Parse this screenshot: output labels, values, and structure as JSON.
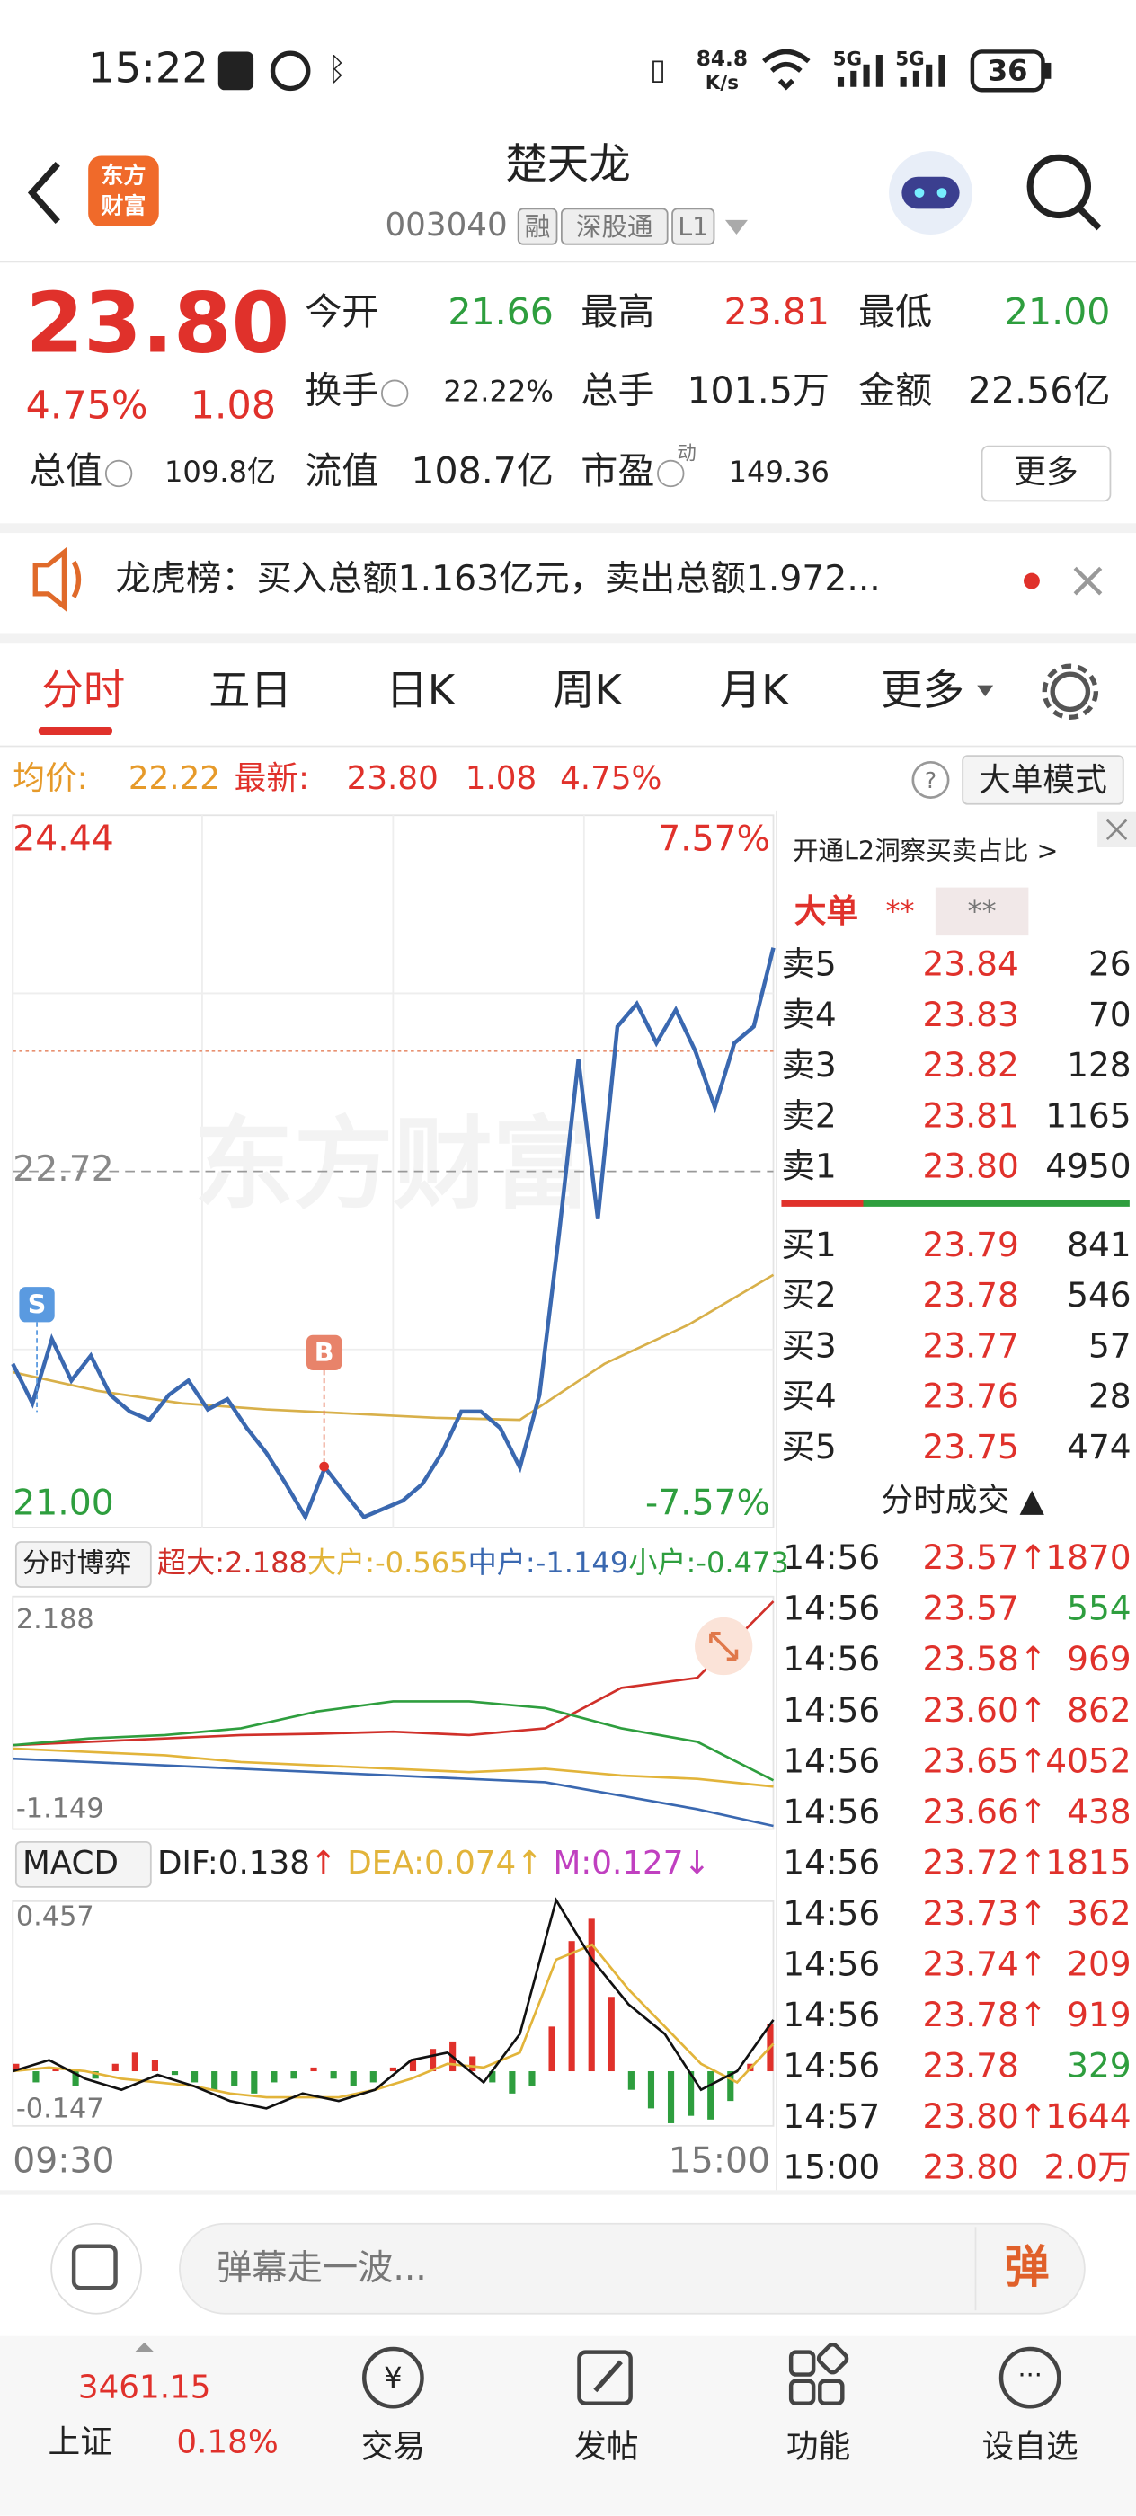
{
  "status_bar": {
    "time": "15:22",
    "speed": "84.8",
    "speed_unit": "K/s",
    "network": [
      "5G",
      "5G"
    ],
    "battery": "36"
  },
  "header": {
    "logo": [
      "东方",
      "财富"
    ],
    "title": "楚天龙",
    "code": "003040",
    "tags": [
      "融",
      "深股通",
      "L1"
    ]
  },
  "quote": {
    "price": "23.80",
    "change_pct": "4.75%",
    "change": "1.08",
    "fields": [
      {
        "label": "今开",
        "value": "21.66",
        "color": "green"
      },
      {
        "label": "最高",
        "value": "23.81",
        "color": "red"
      },
      {
        "label": "最低",
        "value": "21.00",
        "color": "green"
      },
      {
        "label": "换手",
        "value": "22.22%",
        "color": "dark"
      },
      {
        "label": "总手",
        "value": "101.5万",
        "color": "dark"
      },
      {
        "label": "金额",
        "value": "22.56亿",
        "color": "dark"
      },
      {
        "label": "总值",
        "value": "109.8亿",
        "color": "dark"
      },
      {
        "label": "流值",
        "value": "108.7亿",
        "color": "dark"
      },
      {
        "label": "市盈",
        "value": "149.36",
        "color": "dark"
      }
    ],
    "pe_sup": "动",
    "more": "更多"
  },
  "notice": "龙虎榜：买入总额1.163亿元，卖出总额1.972...",
  "tabs": [
    "分时",
    "五日",
    "日K",
    "周K",
    "月K",
    "更多"
  ],
  "info_bar": {
    "avg_label": "均价:",
    "avg": "22.22",
    "last_label": "最新:",
    "last": "23.80",
    "change": "1.08",
    "change_pct": "4.75%",
    "help": "?",
    "mode": "大单模式"
  },
  "price_chart": {
    "ylim": [
      {
        "value": 21,
        "label": "21.00"
      },
      24.44
    ],
    "pct_labels": [
      "7.57%",
      "-7.57%"
    ],
    "prev_close": 22.72,
    "watermark": "东方财富",
    "markers": [
      "S",
      "B"
    ],
    "price": {
      "color": "#3a68b0",
      "values": [
        21.79,
        21.6,
        21.91,
        21.71,
        21.83,
        21.64,
        21.56,
        21.52,
        21.64,
        21.71,
        21.57,
        21.62,
        21.48,
        21.36,
        21.21,
        21.05,
        21.29,
        21.17,
        21.05,
        21.09,
        21.13,
        21.21,
        21.36,
        21.56,
        21.56,
        21.48,
        21.29,
        21.64,
        22.41,
        23.26,
        22.49,
        23.42,
        23.53,
        23.34,
        23.5,
        23.3,
        23.03,
        23.34,
        23.42,
        23.8
      ]
    },
    "average": {
      "color": "#d8b04a",
      "values": [
        21.75,
        21.66,
        21.6,
        21.57,
        21.55,
        21.53,
        21.52,
        21.79,
        21.98,
        22.22
      ]
    },
    "x_labels": [
      "09:30",
      "15:00"
    ]
  },
  "fund_chart": {
    "title": "分时博弈",
    "ylim": [
      -1.149,
      2.188
    ],
    "series": [
      {
        "name": "超大:",
        "color": "#d0302a",
        "values": [
          0.05,
          0.1,
          0.15,
          0.2,
          0.22,
          0.25,
          0.2,
          0.3,
          0.9,
          1.05,
          2.188
        ]
      },
      {
        "name": "大户:",
        "color": "#e2b43a",
        "values": [
          0.0,
          -0.05,
          -0.1,
          -0.2,
          -0.25,
          -0.3,
          -0.35,
          -0.3,
          -0.4,
          -0.45,
          -0.565
        ]
      },
      {
        "name": "中户:",
        "color": "#3a68b0",
        "values": [
          -0.15,
          -0.2,
          -0.25,
          -0.3,
          -0.35,
          -0.4,
          -0.45,
          -0.5,
          -0.7,
          -0.9,
          -1.149
        ]
      },
      {
        "name": "小户:",
        "color": "#2e9e3e",
        "values": [
          0.05,
          0.15,
          0.2,
          0.3,
          0.55,
          0.7,
          0.7,
          0.6,
          0.3,
          0.1,
          -0.473
        ]
      }
    ]
  },
  "macd_chart": {
    "title": "MACD",
    "ylim": [
      -0.147,
      0.457
    ],
    "dif": {
      "name": "DIF:",
      "trend": "↑",
      "color": "#111111",
      "values": [
        0.0,
        0.03,
        -0.02,
        -0.05,
        -0.01,
        -0.04,
        -0.08,
        -0.1,
        -0.06,
        -0.08,
        -0.05,
        0.03,
        0.05,
        -0.03,
        0.1,
        0.46,
        0.3,
        0.18,
        0.1,
        -0.05,
        0.0,
        0.138
      ]
    },
    "dea": {
      "name": "DEA:",
      "trend": "↑",
      "color": "#e2b43a",
      "values": [
        0.0,
        0.01,
        0.0,
        -0.02,
        -0.03,
        -0.04,
        -0.06,
        -0.07,
        -0.07,
        -0.07,
        -0.05,
        -0.02,
        0.02,
        0.01,
        0.05,
        0.3,
        0.34,
        0.22,
        0.12,
        0.02,
        -0.03,
        0.074
      ]
    },
    "m": {
      "name": "M:",
      "trend": "↓",
      "up_color": "#e0312b",
      "down_color": "#2e9e3e",
      "values": [
        0.02,
        -0.03,
        0.01,
        -0.04,
        -0.02,
        0.02,
        0.05,
        0.03,
        -0.01,
        -0.03,
        -0.05,
        -0.04,
        -0.06,
        -0.03,
        -0.02,
        0.01,
        -0.02,
        -0.04,
        -0.03,
        0.01,
        0.03,
        0.06,
        0.08,
        0.04,
        -0.03,
        -0.06,
        -0.04,
        0.12,
        0.35,
        0.41,
        0.2,
        -0.05,
        -0.1,
        -0.14,
        -0.12,
        -0.13,
        -0.08,
        0.02,
        0.127
      ]
    }
  },
  "order_book": {
    "l2": "开通L2洞察买卖占比 >",
    "big": "大单",
    "big_values": [
      "**",
      "**"
    ],
    "asks": [
      {
        "label": "卖5",
        "price": "23.84",
        "volume": "26"
      },
      {
        "label": "卖4",
        "price": "23.83",
        "volume": "70"
      },
      {
        "label": "卖3",
        "price": "23.82",
        "volume": "128"
      },
      {
        "label": "卖2",
        "price": "23.81",
        "volume": "1165"
      },
      {
        "label": "卖1",
        "price": "23.80",
        "volume": "4950"
      }
    ],
    "bids": [
      {
        "label": "买1",
        "price": "23.79",
        "volume": "841"
      },
      {
        "label": "买2",
        "price": "23.78",
        "volume": "546"
      },
      {
        "label": "买3",
        "price": "23.77",
        "volume": "57"
      },
      {
        "label": "买4",
        "price": "23.76",
        "volume": "28"
      },
      {
        "label": "买5",
        "price": "23.75",
        "volume": "474"
      }
    ]
  },
  "trades": {
    "title": "分时成交 ▲",
    "rows": [
      {
        "time": "14:56",
        "price": "23.57↑",
        "volume": "1870",
        "color": "red"
      },
      {
        "time": "14:56",
        "price": "23.57",
        "volume": "554",
        "color": "green"
      },
      {
        "time": "14:56",
        "price": "23.58↑",
        "volume": "969",
        "color": "red"
      },
      {
        "time": "14:56",
        "price": "23.60↑",
        "volume": "862",
        "color": "red"
      },
      {
        "time": "14:56",
        "price": "23.65↑",
        "volume": "4052",
        "color": "red"
      },
      {
        "time": "14:56",
        "price": "23.66↑",
        "volume": "438",
        "color": "red"
      },
      {
        "time": "14:56",
        "price": "23.72↑",
        "volume": "1815",
        "color": "red"
      },
      {
        "time": "14:56",
        "price": "23.73↑",
        "volume": "362",
        "color": "red"
      },
      {
        "time": "14:56",
        "price": "23.74↑",
        "volume": "209",
        "color": "red"
      },
      {
        "time": "14:56",
        "price": "23.78↑",
        "volume": "919",
        "color": "red"
      },
      {
        "time": "14:56",
        "price": "23.78",
        "volume": "329",
        "color": "green"
      },
      {
        "time": "14:57",
        "price": "23.80↑",
        "volume": "1644",
        "color": "red"
      },
      {
        "time": "15:00",
        "price": "23.80",
        "volume": "2.0万",
        "color": "red"
      }
    ]
  },
  "comment_bar": {
    "placeholder": "弹幕走一波...",
    "button": "弹"
  },
  "bottom_nav": {
    "index_value": "3461.15",
    "index_name": "上证",
    "index_pct": "0.18%",
    "items": [
      "交易",
      "发帖",
      "功能",
      "设自选"
    ]
  }
}
